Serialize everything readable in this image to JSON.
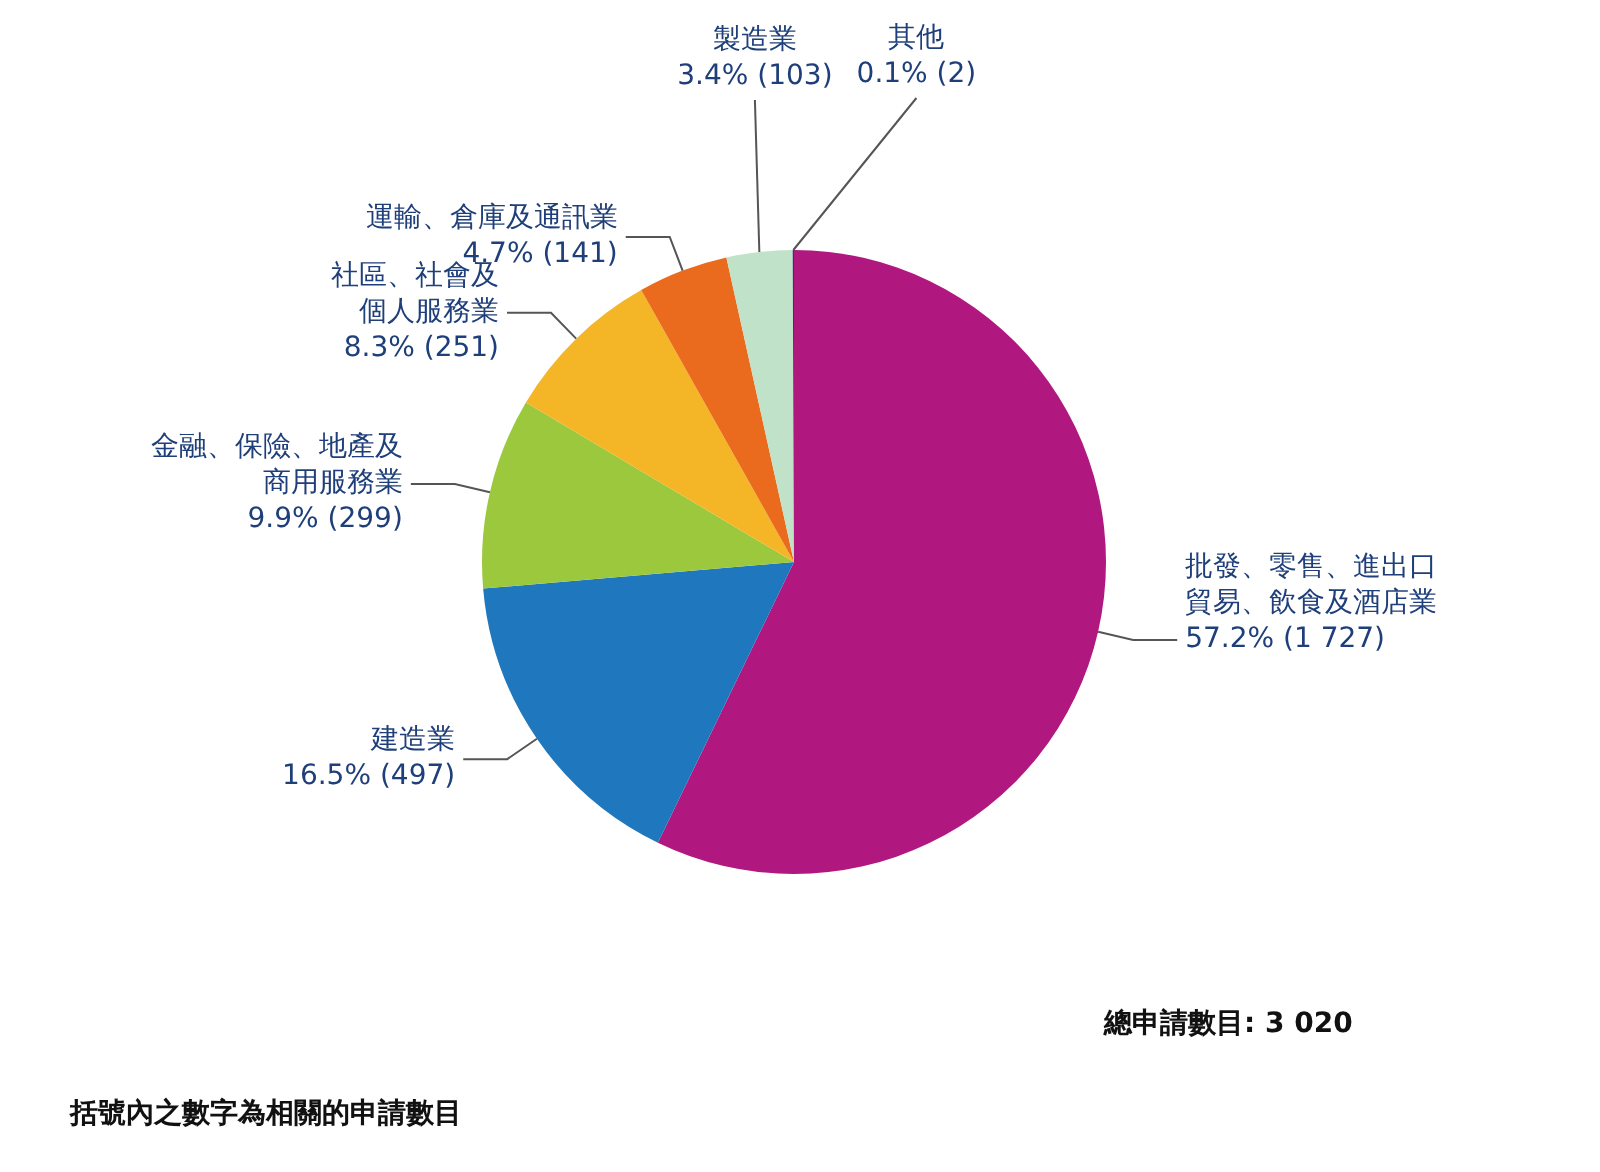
{
  "chart_data": {
    "type": "pie",
    "categories": [
      "批發、零售、進出口貿易、飲食及酒店業",
      "建造業",
      "金融、保險、地產及商用服務業",
      "社區、社會及個人服務業",
      "運輸、倉庫及通訊業",
      "製造業",
      "其他"
    ],
    "values": [
      1727,
      497,
      299,
      251,
      141,
      103,
      2
    ],
    "colors": [
      "#b0177f",
      "#1f78bd",
      "#9cc83e",
      "#f4b626",
      "#ea6a1e",
      "#bfe2c9",
      "#213c7c"
    ],
    "value_labels": [
      "57.2% (1 727)",
      "16.5% (497)",
      "9.9% (299)",
      "8.3% (251)",
      "4.7% (141)",
      "3.4% (103)",
      "0.1% (2)"
    ],
    "legend": false,
    "annotations": [
      "總申請數目: 3 020",
      "括號內之數字為相關的申請數目"
    ]
  }
}
